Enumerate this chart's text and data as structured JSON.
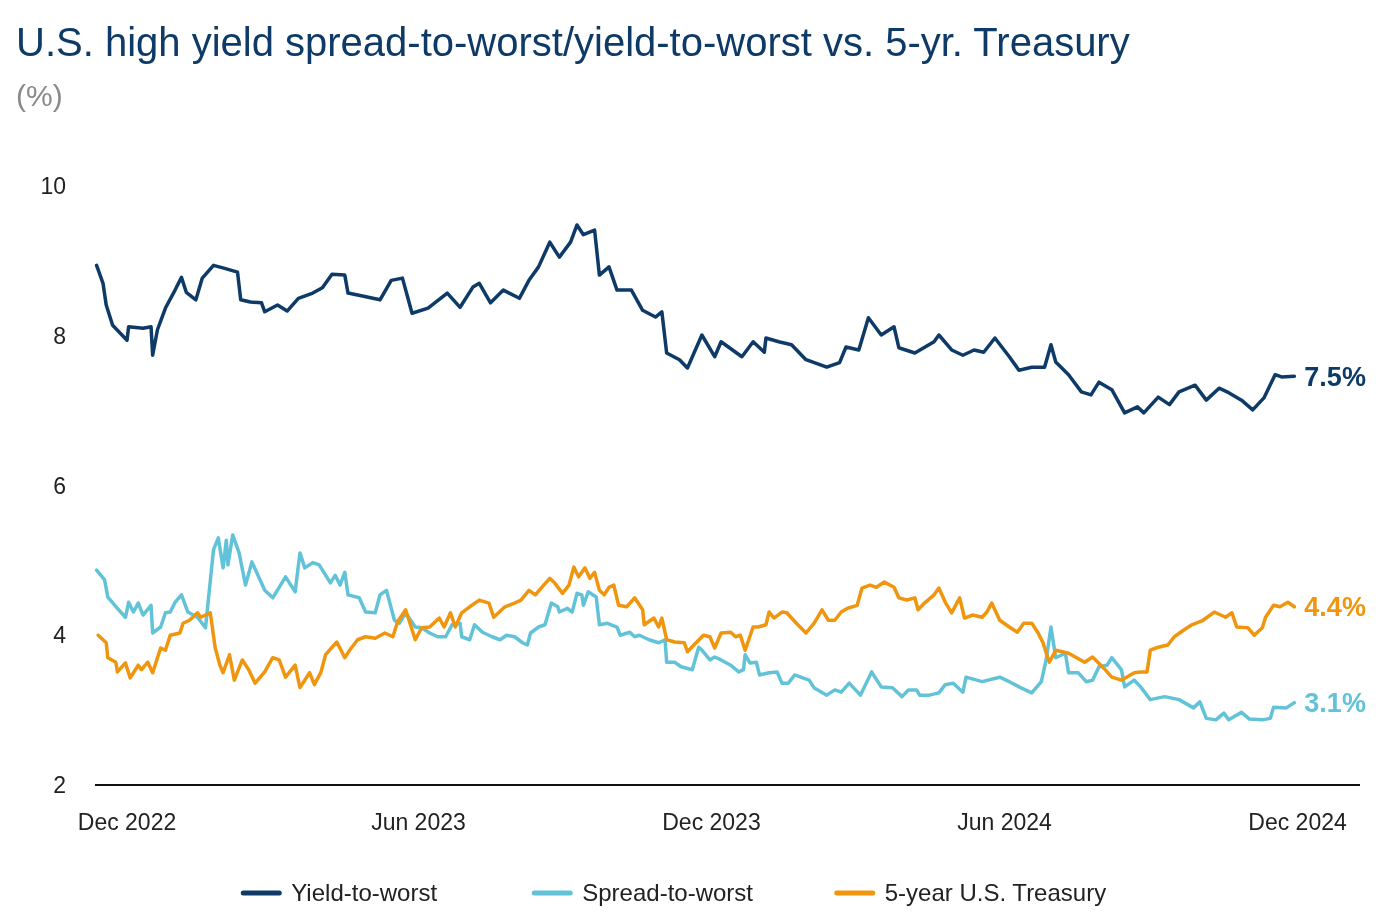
{
  "chart_data": {
    "type": "line",
    "title": "U.S. high yield spread-to-worst/yield-to-worst vs. 5-yr. Treasury",
    "subtitle": "(%)",
    "xlim": [
      "2022-11-11",
      "2025-01-09"
    ],
    "xticks": [
      {
        "value": "2022-12-01",
        "label": "Dec 2022"
      },
      {
        "value": "2023-06-01",
        "label": "Jun 2023"
      },
      {
        "value": "2023-12-01",
        "label": "Dec 2023"
      },
      {
        "value": "2024-06-01",
        "label": "Jun 2024"
      },
      {
        "value": "2024-12-01",
        "label": "Dec 2024"
      }
    ],
    "ylim": [
      2,
      10
    ],
    "yticks": [
      2,
      4,
      6,
      8,
      10
    ],
    "grid": false,
    "legend": "bottom",
    "marker": "none",
    "line_style": "solid",
    "annotations": [
      {
        "text": "7.5%",
        "x": "2024-11-29",
        "y": 7.46
      },
      {
        "text": "4.4%",
        "x": "2024-11-29",
        "y": 4.38
      },
      {
        "text": "3.1%",
        "x": "2024-11-29",
        "y": 3.1
      }
    ],
    "series": [
      {
        "name": "Yield-to-worst",
        "color": "#0d3a66",
        "x": [
          "2022-11-12",
          "2022-11-16",
          "2022-11-18",
          "2022-11-22",
          "2022-12-01",
          "2022-12-02",
          "2022-12-11",
          "2022-12-16",
          "2022-12-17",
          "2022-12-20",
          "2022-12-25",
          "2022-12-31",
          "2023-01-04",
          "2023-01-07",
          "2023-01-13",
          "2023-01-17",
          "2023-01-24",
          "2023-01-31",
          "2023-02-08",
          "2023-02-10",
          "2023-02-16",
          "2023-02-23",
          "2023-02-25",
          "2023-03-05",
          "2023-03-11",
          "2023-03-18",
          "2023-03-27",
          "2023-04-02",
          "2023-04-08",
          "2023-04-16",
          "2023-04-18",
          "2023-04-27",
          "2023-05-08",
          "2023-05-15",
          "2023-05-22",
          "2023-05-28",
          "2023-06-07",
          "2023-06-19",
          "2023-06-27",
          "2023-07-05",
          "2023-07-09",
          "2023-07-16",
          "2023-07-24",
          "2023-08-03",
          "2023-08-09",
          "2023-08-15",
          "2023-08-22",
          "2023-08-28",
          "2023-09-04",
          "2023-09-08",
          "2023-09-12",
          "2023-09-19",
          "2023-09-22",
          "2023-09-28",
          "2023-10-03",
          "2023-10-12",
          "2023-10-19",
          "2023-10-27",
          "2023-10-31",
          "2023-11-03",
          "2023-11-11",
          "2023-11-16",
          "2023-11-25",
          "2023-12-03",
          "2023-12-07",
          "2023-12-20",
          "2023-12-27",
          "2024-01-03",
          "2024-01-04",
          "2024-01-12",
          "2024-01-20",
          "2024-01-29",
          "2024-02-11",
          "2024-02-19",
          "2024-02-23",
          "2024-03-02",
          "2024-03-08",
          "2024-03-16",
          "2024-03-24",
          "2024-03-27",
          "2024-04-06",
          "2024-04-18",
          "2024-04-21",
          "2024-04-29",
          "2024-05-06",
          "2024-05-13",
          "2024-05-19",
          "2024-05-26",
          "2024-06-04",
          "2024-06-10",
          "2024-06-18",
          "2024-06-26",
          "2024-06-30",
          "2024-07-03",
          "2024-07-11",
          "2024-07-19",
          "2024-07-25",
          "2024-07-30",
          "2024-08-07",
          "2024-08-15",
          "2024-08-23",
          "2024-08-27",
          "2024-09-05",
          "2024-09-12",
          "2024-09-18",
          "2024-09-28",
          "2024-10-05",
          "2024-10-13",
          "2024-10-19",
          "2024-10-27",
          "2024-11-03",
          "2024-11-10",
          "2024-11-17",
          "2024-11-21",
          "2024-11-29"
        ],
        "values": [
          8.94,
          8.7,
          8.41,
          8.14,
          7.94,
          8.12,
          8.1,
          8.12,
          7.74,
          8.08,
          8.37,
          8.61,
          8.78,
          8.58,
          8.48,
          8.77,
          8.94,
          8.9,
          8.85,
          8.48,
          8.45,
          8.44,
          8.32,
          8.41,
          8.33,
          8.5,
          8.57,
          8.64,
          8.82,
          8.81,
          8.57,
          8.53,
          8.48,
          8.74,
          8.77,
          8.3,
          8.37,
          8.57,
          8.38,
          8.65,
          8.7,
          8.44,
          8.61,
          8.5,
          8.74,
          8.92,
          9.25,
          9.05,
          9.25,
          9.48,
          9.35,
          9.41,
          8.81,
          8.92,
          8.61,
          8.61,
          8.34,
          8.25,
          8.32,
          7.77,
          7.68,
          7.57,
          8.01,
          7.72,
          7.92,
          7.72,
          7.92,
          7.78,
          7.97,
          7.92,
          7.88,
          7.68,
          7.58,
          7.64,
          7.85,
          7.81,
          8.24,
          8.01,
          8.12,
          7.84,
          7.77,
          7.92,
          8.01,
          7.81,
          7.74,
          7.81,
          7.78,
          7.97,
          7.72,
          7.54,
          7.58,
          7.58,
          7.88,
          7.65,
          7.48,
          7.25,
          7.21,
          7.38,
          7.28,
          6.97,
          7.05,
          6.97,
          7.18,
          7.08,
          7.25,
          7.34,
          7.14,
          7.3,
          7.24,
          7.14,
          7.01,
          7.17,
          7.48,
          7.45,
          7.46
        ]
      },
      {
        "name": "Spread-to-worst",
        "color": "#62c3d8",
        "x": [
          "2022-11-12",
          "2022-11-17",
          "2022-11-19",
          "2022-11-25",
          "2022-11-30",
          "2022-12-02",
          "2022-12-05",
          "2022-12-08",
          "2022-12-11",
          "2022-12-16",
          "2022-12-17",
          "2022-12-22",
          "2022-12-25",
          "2022-12-28",
          "2022-12-31",
          "2023-01-04",
          "2023-01-08",
          "2023-01-14",
          "2023-01-19",
          "2023-01-24",
          "2023-01-27",
          "2023-01-30",
          "2023-02-01",
          "2023-02-02",
          "2023-02-05",
          "2023-02-09",
          "2023-02-13",
          "2023-02-17",
          "2023-02-25",
          "2023-03-02",
          "2023-03-06",
          "2023-03-10",
          "2023-03-16",
          "2023-03-19",
          "2023-03-22",
          "2023-03-27",
          "2023-03-31",
          "2023-04-07",
          "2023-04-10",
          "2023-04-13",
          "2023-04-16",
          "2023-04-18",
          "2023-04-25",
          "2023-04-29",
          "2023-05-05",
          "2023-05-08",
          "2023-05-12",
          "2023-05-17",
          "2023-05-20",
          "2023-05-24",
          "2023-05-30",
          "2023-06-03",
          "2023-06-08",
          "2023-06-13",
          "2023-06-18",
          "2023-06-22",
          "2023-06-27",
          "2023-06-28",
          "2023-07-03",
          "2023-07-06",
          "2023-07-11",
          "2023-07-17",
          "2023-07-22",
          "2023-07-26",
          "2023-07-31",
          "2023-08-05",
          "2023-08-08",
          "2023-08-10",
          "2023-08-15",
          "2023-08-19",
          "2023-08-23",
          "2023-08-27",
          "2023-08-28",
          "2023-09-02",
          "2023-09-05",
          "2023-09-08",
          "2023-09-11",
          "2023-09-12",
          "2023-09-15",
          "2023-09-20",
          "2023-09-22",
          "2023-09-27",
          "2023-10-03",
          "2023-10-05",
          "2023-10-11",
          "2023-10-14",
          "2023-10-17",
          "2023-10-23",
          "2023-10-29",
          "2023-11-02",
          "2023-11-03",
          "2023-11-08",
          "2023-11-12",
          "2023-11-19",
          "2023-11-23",
          "2023-11-25",
          "2023-11-30",
          "2023-12-03",
          "2023-12-07",
          "2023-12-13",
          "2023-12-18",
          "2023-12-21",
          "2023-12-22",
          "2023-12-25",
          "2023-12-29",
          "2023-12-31",
          "2024-01-06",
          "2024-01-11",
          "2024-01-14",
          "2024-01-18",
          "2024-01-22",
          "2024-01-27",
          "2024-01-31",
          "2024-02-03",
          "2024-02-11",
          "2024-02-16",
          "2024-02-20",
          "2024-02-25",
          "2024-03-03",
          "2024-03-10",
          "2024-03-16",
          "2024-03-23",
          "2024-03-29",
          "2024-04-02",
          "2024-04-07",
          "2024-04-09",
          "2024-04-15",
          "2024-04-21",
          "2024-04-25",
          "2024-04-30",
          "2024-05-06",
          "2024-05-08",
          "2024-05-18",
          "2024-05-29",
          "2024-06-04",
          "2024-06-11",
          "2024-06-18",
          "2024-06-24",
          "2024-06-27",
          "2024-06-30",
          "2024-07-03",
          "2024-07-09",
          "2024-07-11",
          "2024-07-17",
          "2024-07-22",
          "2024-07-26",
          "2024-07-30",
          "2024-08-04",
          "2024-08-07",
          "2024-08-13",
          "2024-08-15",
          "2024-08-21",
          "2024-08-25",
          "2024-08-31",
          "2024-09-09",
          "2024-09-18",
          "2024-09-27",
          "2024-10-01",
          "2024-10-05",
          "2024-10-11",
          "2024-10-16",
          "2024-10-19",
          "2024-10-27",
          "2024-11-01",
          "2024-11-09",
          "2024-11-14",
          "2024-11-16",
          "2024-11-24",
          "2024-11-29"
        ],
        "values": [
          4.87,
          4.74,
          4.51,
          4.36,
          4.24,
          4.44,
          4.31,
          4.43,
          4.27,
          4.4,
          4.03,
          4.11,
          4.3,
          4.31,
          4.44,
          4.54,
          4.31,
          4.24,
          4.1,
          5.14,
          5.3,
          4.9,
          5.27,
          4.94,
          5.34,
          5.1,
          4.67,
          4.98,
          4.6,
          4.5,
          4.64,
          4.78,
          4.58,
          5.1,
          4.9,
          4.97,
          4.94,
          4.7,
          4.8,
          4.67,
          4.84,
          4.54,
          4.5,
          4.31,
          4.3,
          4.54,
          4.6,
          4.2,
          4.16,
          4.3,
          4.11,
          4.1,
          4.03,
          3.98,
          3.98,
          4.14,
          4.16,
          3.98,
          3.94,
          4.14,
          4.04,
          3.98,
          3.94,
          4.0,
          3.98,
          3.9,
          3.87,
          4.03,
          4.11,
          4.14,
          4.43,
          4.38,
          4.31,
          4.36,
          4.31,
          4.56,
          4.54,
          4.4,
          4.58,
          4.51,
          4.14,
          4.16,
          4.11,
          4.0,
          4.04,
          3.98,
          4.0,
          3.94,
          3.9,
          3.94,
          3.64,
          3.64,
          3.58,
          3.54,
          3.84,
          3.8,
          3.67,
          3.71,
          3.67,
          3.6,
          3.51,
          3.54,
          3.74,
          3.63,
          3.64,
          3.47,
          3.5,
          3.51,
          3.36,
          3.36,
          3.47,
          3.43,
          3.4,
          3.3,
          3.2,
          3.27,
          3.24,
          3.36,
          3.2,
          3.51,
          3.31,
          3.3,
          3.18,
          3.27,
          3.27,
          3.2,
          3.2,
          3.23,
          3.34,
          3.36,
          3.24,
          3.44,
          3.38,
          3.44,
          3.38,
          3.3,
          3.23,
          3.38,
          3.67,
          4.11,
          3.7,
          3.76,
          3.5,
          3.5,
          3.38,
          3.4,
          3.58,
          3.6,
          3.7,
          3.54,
          3.31,
          3.4,
          3.31,
          3.14,
          3.18,
          3.14,
          3.03,
          3.11,
          2.89,
          2.87,
          2.96,
          2.87,
          2.97,
          2.88,
          2.87,
          2.89,
          3.04,
          3.03,
          3.1
        ]
      },
      {
        "name": "5-year U.S. Treasury",
        "color": "#f0950e",
        "x": [
          "2022-11-13",
          "2022-11-18",
          "2022-11-19",
          "2022-11-24",
          "2022-11-25",
          "2022-11-30",
          "2022-12-03",
          "2022-12-08",
          "2022-12-10",
          "2022-12-14",
          "2022-12-17",
          "2022-12-22",
          "2022-12-25",
          "2022-12-28",
          "2023-01-03",
          "2023-01-05",
          "2023-01-09",
          "2023-01-14",
          "2023-01-16",
          "2023-01-22",
          "2023-01-25",
          "2023-01-28",
          "2023-01-30",
          "2023-02-03",
          "2023-02-06",
          "2023-02-11",
          "2023-02-15",
          "2023-02-19",
          "2023-02-25",
          "2023-03-02",
          "2023-03-06",
          "2023-03-10",
          "2023-03-16",
          "2023-03-19",
          "2023-03-25",
          "2023-03-28",
          "2023-04-01",
          "2023-04-04",
          "2023-04-11",
          "2023-04-16",
          "2023-04-19",
          "2023-04-24",
          "2023-04-29",
          "2023-05-05",
          "2023-05-11",
          "2023-05-16",
          "2023-05-19",
          "2023-05-24",
          "2023-05-30",
          "2023-06-03",
          "2023-06-08",
          "2023-06-14",
          "2023-06-17",
          "2023-06-21",
          "2023-06-24",
          "2023-06-28",
          "2023-07-03",
          "2023-07-09",
          "2023-07-15",
          "2023-07-18",
          "2023-07-25",
          "2023-07-31",
          "2023-08-04",
          "2023-08-09",
          "2023-08-13",
          "2023-08-17",
          "2023-08-22",
          "2023-08-25",
          "2023-08-30",
          "2023-09-03",
          "2023-09-06",
          "2023-09-09",
          "2023-09-13",
          "2023-09-16",
          "2023-09-19",
          "2023-09-22",
          "2023-09-25",
          "2023-09-28",
          "2023-10-01",
          "2023-10-04",
          "2023-10-09",
          "2023-10-14",
          "2023-10-19",
          "2023-10-20",
          "2023-10-26",
          "2023-10-29",
          "2023-10-31",
          "2023-11-03",
          "2023-11-08",
          "2023-11-14",
          "2023-11-16",
          "2023-11-20",
          "2023-11-26",
          "2023-11-30",
          "2023-12-03",
          "2023-12-07",
          "2023-12-13",
          "2023-12-16",
          "2023-12-19",
          "2023-12-22",
          "2023-12-27",
          "2023-12-30",
          "2024-01-04",
          "2024-01-06",
          "2024-01-09",
          "2024-01-14",
          "2024-01-17",
          "2024-01-20",
          "2024-01-23",
          "2024-01-29",
          "2024-02-03",
          "2024-02-08",
          "2024-02-12",
          "2024-02-16",
          "2024-02-20",
          "2024-02-24",
          "2024-03-01",
          "2024-03-04",
          "2024-03-09",
          "2024-03-13",
          "2024-03-18",
          "2024-03-24",
          "2024-03-27",
          "2024-04-01",
          "2024-04-06",
          "2024-04-08",
          "2024-04-12",
          "2024-04-18",
          "2024-04-21",
          "2024-04-25",
          "2024-04-29",
          "2024-05-04",
          "2024-05-07",
          "2024-05-12",
          "2024-05-18",
          "2024-05-21",
          "2024-05-24",
          "2024-05-29",
          "2024-06-04",
          "2024-06-09",
          "2024-06-13",
          "2024-06-18",
          "2024-06-22",
          "2024-06-25",
          "2024-06-29",
          "2024-07-03",
          "2024-07-11",
          "2024-07-16",
          "2024-07-21",
          "2024-07-26",
          "2024-08-02",
          "2024-08-07",
          "2024-08-13",
          "2024-08-21",
          "2024-08-25",
          "2024-08-29",
          "2024-08-31",
          "2024-09-05",
          "2024-09-11",
          "2024-09-15",
          "2024-09-21",
          "2024-09-26",
          "2024-10-03",
          "2024-10-10",
          "2024-10-17",
          "2024-10-21",
          "2024-10-24",
          "2024-10-31",
          "2024-11-04",
          "2024-11-09",
          "2024-11-11",
          "2024-11-16",
          "2024-11-20",
          "2024-11-25",
          "2024-11-29"
        ],
        "values": [
          4.0,
          3.9,
          3.7,
          3.64,
          3.51,
          3.63,
          3.43,
          3.6,
          3.54,
          3.64,
          3.5,
          3.83,
          3.8,
          4.0,
          4.03,
          4.16,
          4.2,
          4.3,
          4.24,
          4.3,
          3.84,
          3.6,
          3.5,
          3.74,
          3.4,
          3.67,
          3.54,
          3.36,
          3.51,
          3.7,
          3.67,
          3.44,
          3.6,
          3.3,
          3.5,
          3.34,
          3.5,
          3.74,
          3.91,
          3.7,
          3.8,
          3.94,
          3.98,
          3.96,
          4.03,
          3.98,
          4.18,
          4.34,
          3.94,
          4.1,
          4.11,
          4.23,
          4.11,
          4.3,
          4.11,
          4.3,
          4.38,
          4.47,
          4.43,
          4.24,
          4.38,
          4.43,
          4.47,
          4.6,
          4.54,
          4.64,
          4.76,
          4.7,
          4.56,
          4.67,
          4.91,
          4.78,
          4.9,
          4.76,
          4.84,
          4.6,
          4.54,
          4.64,
          4.67,
          4.4,
          4.38,
          4.5,
          4.34,
          4.14,
          4.23,
          4.11,
          4.23,
          3.94,
          3.91,
          3.9,
          3.78,
          3.87,
          4.0,
          3.98,
          3.83,
          4.03,
          4.04,
          3.98,
          4.0,
          3.8,
          4.11,
          4.11,
          4.14,
          4.31,
          4.23,
          4.31,
          4.3,
          4.23,
          4.16,
          4.03,
          4.16,
          4.34,
          4.2,
          4.2,
          4.31,
          4.36,
          4.4,
          4.63,
          4.67,
          4.64,
          4.71,
          4.64,
          4.5,
          4.47,
          4.5,
          4.34,
          4.43,
          4.54,
          4.63,
          4.44,
          4.3,
          4.5,
          4.23,
          4.27,
          4.24,
          4.31,
          4.43,
          4.2,
          4.11,
          4.04,
          4.16,
          4.16,
          4.03,
          3.9,
          3.64,
          3.8,
          3.76,
          3.7,
          3.64,
          3.71,
          3.56,
          3.44,
          3.4,
          3.5,
          3.51,
          3.51,
          3.8,
          3.84,
          3.87,
          3.98,
          4.07,
          4.14,
          4.2,
          4.31,
          4.24,
          4.3,
          4.11,
          4.1,
          4.0,
          4.1,
          4.24,
          4.4,
          4.38,
          4.44,
          4.38
        ]
      }
    ]
  }
}
